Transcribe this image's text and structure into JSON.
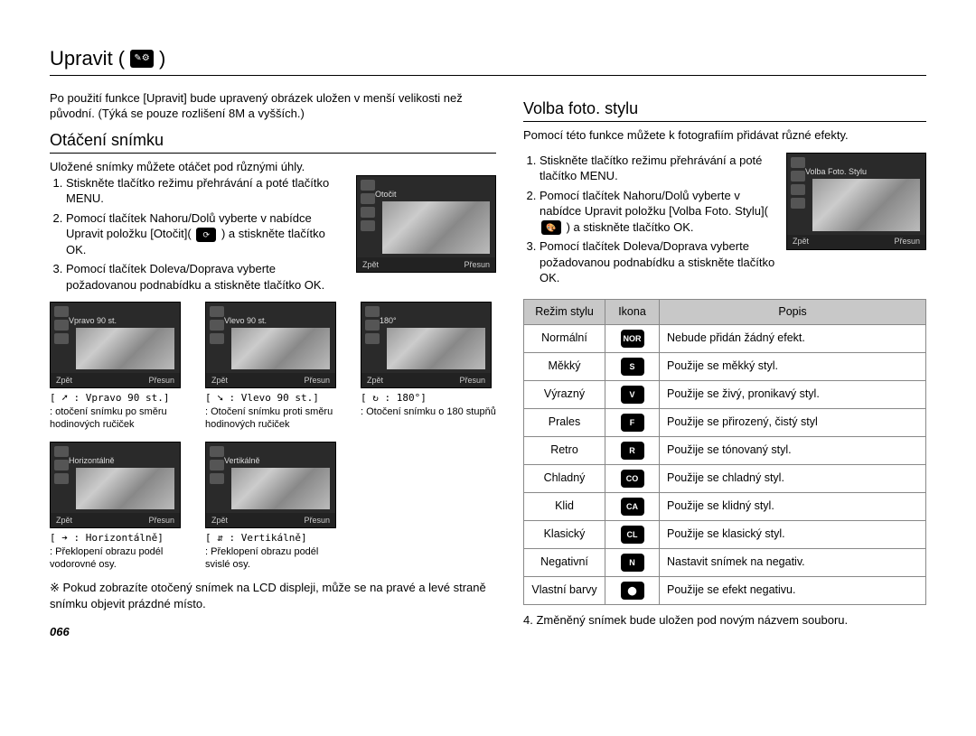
{
  "page": {
    "title": "Upravit",
    "number": "066"
  },
  "left": {
    "intro": "Po použití funkce [Upravit] bude upravený obrázek uložen v menší velikosti než původní. (Týká se pouze rozlišení 8M a vyšších.)",
    "section_title": "Otáčení snímku",
    "subtitle": "Uložené snímky můžete otáčet pod různými úhly.",
    "steps": [
      "Stiskněte tlačítko režimu přehrávání a poté tlačítko MENU.",
      "Pomocí tlačítek Nahoru/Dolů vyberte v nabídce Upravit položku [Otočit]( ",
      "Pomocí tlačítek Doleva/Doprava vyberte požadovanou podnabídku a stiskněte tlačítko OK."
    ],
    "step2_tail": " ) a stiskněte tlačítko OK.",
    "screen": {
      "label": "Otočit",
      "back": "Zpět",
      "move": "Přesun"
    },
    "thumbs_row1": [
      {
        "label": "Vpravo 90 st.",
        "cap1": "[ ➚ : Vpravo 90 st.]",
        "cap2": ": otočení snímku po směru hodinových ručiček"
      },
      {
        "label": "Vlevo 90 st.",
        "cap1": "[ ➘ : Vlevo 90 st.]",
        "cap2": ": Otočení snímku proti směru hodinových ručiček"
      },
      {
        "label": "180°",
        "cap1": "[ ↻ : 180°]",
        "cap2": ": Otočení snímku o 180 stupňů"
      }
    ],
    "thumbs_row2": [
      {
        "label": "Horizontálně",
        "cap1": "[ ➔ : Horizontálně]",
        "cap2": ": Překlopení obrazu podél vodorovné osy."
      },
      {
        "label": "Vertikálně",
        "cap1": "[ ⇵ : Vertikálně]",
        "cap2": ": Překlopení obrazu podél svislé osy."
      }
    ],
    "bottom_back": "Zpět",
    "bottom_move": "Přesun",
    "note": "※ Pokud zobrazíte otočený snímek na LCD displeji, může se na pravé a levé straně snímku objevit prázdné místo."
  },
  "right": {
    "section_title": "Volba foto. stylu",
    "subtitle": "Pomocí této funkce můžete k fotografiím přidávat různé efekty.",
    "steps": [
      "Stiskněte tlačítko režimu přehrávání a poté tlačítko MENU.",
      "Pomocí tlačítek Nahoru/Dolů vyberte v nabídce Upravit položku [Volba Foto. Stylu]( ",
      "Pomocí tlačítek Doleva/Doprava vyberte požadovanou podnabídku a stiskněte tlačítko OK."
    ],
    "step2_tail": " ) a stiskněte tlačítko OK.",
    "screen": {
      "label": "Volba Foto. Stylu",
      "back": "Zpět",
      "move": "Přesun"
    },
    "table": {
      "headers": [
        "Režim stylu",
        "Ikona",
        "Popis"
      ],
      "rows": [
        {
          "mode": "Normální",
          "icon": "NOR",
          "desc": "Nebude přidán žádný efekt."
        },
        {
          "mode": "Měkký",
          "icon": "S",
          "desc": "Použije se měkký styl."
        },
        {
          "mode": "Výrazný",
          "icon": "V",
          "desc": "Použije se živý, pronikavý styl."
        },
        {
          "mode": "Prales",
          "icon": "F",
          "desc": "Použije se přirozený, čistý styl"
        },
        {
          "mode": "Retro",
          "icon": "R",
          "desc": "Použije se tónovaný styl."
        },
        {
          "mode": "Chladný",
          "icon": "CO",
          "desc": "Použije se chladný styl."
        },
        {
          "mode": "Klid",
          "icon": "CA",
          "desc": "Použije se klidný styl."
        },
        {
          "mode": "Klasický",
          "icon": "CL",
          "desc": "Použije se klasický styl."
        },
        {
          "mode": "Negativní",
          "icon": "N",
          "desc": "Nastavit snímek na negativ."
        },
        {
          "mode": "Vlastní barvy",
          "icon": "⬤",
          "desc": "Použije se efekt negativu."
        }
      ]
    },
    "footer_step": "4. Změněný snímek bude uložen pod novým názvem souboru."
  }
}
